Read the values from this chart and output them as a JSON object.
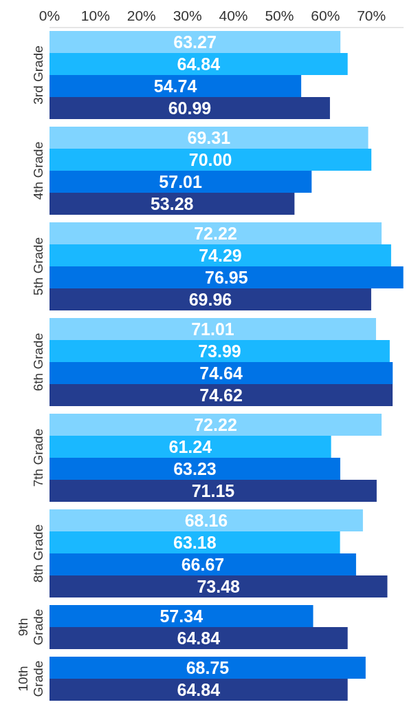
{
  "chart_data": {
    "type": "bar",
    "orientation": "horizontal",
    "categories": [
      "3rd Grade",
      "4th Grade",
      "5th Grade",
      "6th Grade",
      "7th Grade",
      "8th Grade",
      "9th Grade",
      "10th Grade"
    ],
    "xlim": [
      0,
      77
    ],
    "xticks": [
      {
        "value": 0,
        "label": "0%"
      },
      {
        "value": 10,
        "label": "10%"
      },
      {
        "value": 20,
        "label": "20%"
      },
      {
        "value": 30,
        "label": "30%"
      },
      {
        "value": 40,
        "label": "40%"
      },
      {
        "value": 50,
        "label": "50%"
      },
      {
        "value": 60,
        "label": "60%"
      },
      {
        "value": 70,
        "label": "70%"
      }
    ],
    "grid": false,
    "series": [
      {
        "color": "#80d4ff",
        "values": [
          63.27,
          69.31,
          72.22,
          71.01,
          72.22,
          68.16,
          null,
          null
        ],
        "value_labels": [
          "63.27",
          "69.31",
          "72.22",
          "71.01",
          "72.22",
          "68.16",
          null,
          null
        ]
      },
      {
        "color": "#1ab8ff",
        "values": [
          64.84,
          70.0,
          74.29,
          73.99,
          61.24,
          63.18,
          null,
          null
        ],
        "value_labels": [
          "64.84",
          "70.00",
          "74.29",
          "73.99",
          "61.24",
          "63.18",
          null,
          null
        ]
      },
      {
        "color": "#0073e6",
        "values": [
          54.74,
          57.01,
          76.95,
          74.64,
          63.23,
          66.67,
          57.34,
          68.75
        ],
        "value_labels": [
          "54.74",
          "57.01",
          "76.95",
          "74.64",
          "63.23",
          "66.67",
          "57.34",
          "68.75"
        ]
      },
      {
        "color": "#243d8f",
        "values": [
          60.99,
          53.28,
          69.96,
          74.62,
          71.15,
          73.48,
          64.84,
          64.84
        ],
        "value_labels": [
          "60.99",
          "53.28",
          "69.96",
          "74.62",
          "71.15",
          "73.48",
          "64.84",
          "64.84"
        ]
      }
    ]
  }
}
